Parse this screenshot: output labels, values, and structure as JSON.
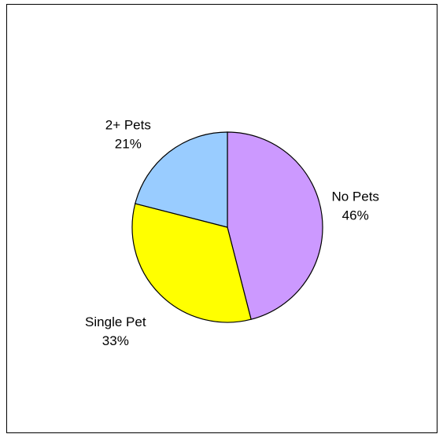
{
  "chart_data": {
    "type": "pie",
    "title": "",
    "legend": "none",
    "slices": [
      {
        "label": "No Pets",
        "value": 46,
        "value_label": "46%",
        "color": "#cc99ff"
      },
      {
        "label": "Single Pet",
        "value": 33,
        "value_label": "33%",
        "color": "#ffff00"
      },
      {
        "label": "2+ Pets",
        "value": 21,
        "value_label": "21%",
        "color": "#99ccff"
      }
    ],
    "border_color": "#000000",
    "slice_stroke": "#000000"
  }
}
